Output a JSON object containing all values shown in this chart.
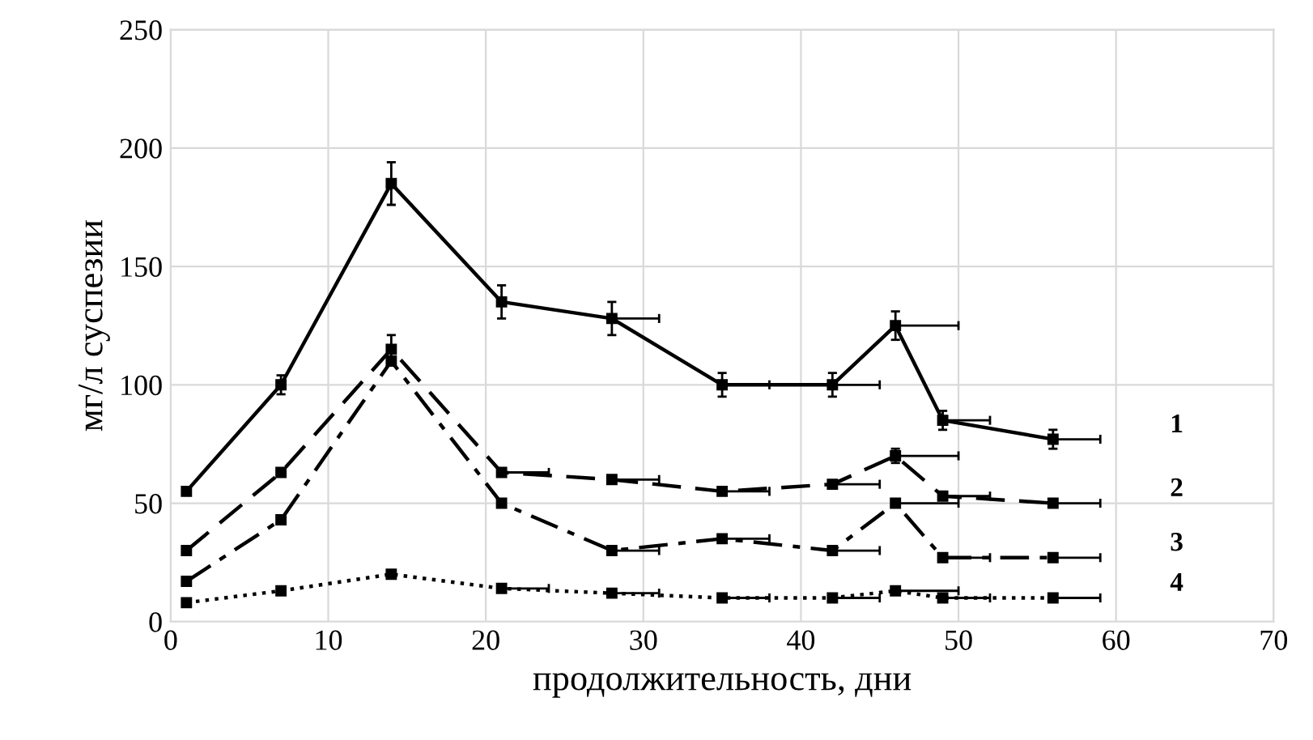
{
  "chart_data": {
    "type": "line",
    "xlabel": "продолжительность, дни",
    "ylabel": "мг/л суспезии",
    "x": [
      1,
      7,
      14,
      21,
      28,
      35,
      42,
      46,
      49,
      56
    ],
    "series": [
      {
        "name": "1",
        "color": "#000000",
        "line_style": "solid",
        "values": [
          55,
          100,
          185,
          135,
          128,
          100,
          100,
          125,
          85,
          77
        ],
        "errors": [
          null,
          4,
          9,
          7,
          7,
          5,
          5,
          6,
          4,
          4
        ],
        "xerrors": [
          null,
          null,
          null,
          null,
          [
            28,
            31
          ],
          [
            35,
            38
          ],
          [
            42,
            45
          ],
          [
            46,
            50
          ],
          [
            49,
            52
          ],
          [
            56,
            59
          ]
        ]
      },
      {
        "name": "2",
        "color": "#000000",
        "line_style": "dashed",
        "values": [
          30,
          63,
          115,
          63,
          60,
          55,
          58,
          70,
          53,
          50
        ],
        "errors": [
          null,
          null,
          6,
          null,
          null,
          null,
          null,
          3,
          null,
          null
        ],
        "xerrors": [
          null,
          null,
          null,
          [
            21,
            24
          ],
          [
            28,
            31
          ],
          [
            35,
            38
          ],
          [
            42,
            45
          ],
          [
            46,
            50
          ],
          [
            49,
            52
          ],
          [
            56,
            59
          ]
        ]
      },
      {
        "name": "3",
        "color": "#000000",
        "line_style": "dashdot",
        "values": [
          17,
          43,
          110,
          50,
          30,
          35,
          30,
          50,
          27,
          27
        ],
        "xerrors": [
          null,
          null,
          null,
          null,
          [
            28,
            31
          ],
          [
            35,
            38
          ],
          [
            42,
            45
          ],
          [
            46,
            50
          ],
          [
            49,
            52
          ],
          [
            56,
            59
          ]
        ]
      },
      {
        "name": "4",
        "color": "#000000",
        "line_style": "dotted",
        "values": [
          8,
          13,
          20,
          14,
          12,
          10,
          10,
          13,
          10,
          10
        ],
        "xerrors": [
          null,
          null,
          null,
          [
            21,
            24
          ],
          [
            28,
            31
          ],
          [
            35,
            38
          ],
          [
            42,
            45
          ],
          [
            46,
            50
          ],
          [
            49,
            52
          ],
          [
            56,
            59
          ]
        ]
      }
    ],
    "xlim": [
      0,
      70
    ],
    "xticks": [
      0,
      10,
      20,
      30,
      40,
      50,
      60,
      70
    ],
    "ylim": [
      0,
      250
    ],
    "yticks": [
      0,
      50,
      100,
      150,
      200,
      250
    ],
    "grid": true,
    "marker": "square"
  }
}
